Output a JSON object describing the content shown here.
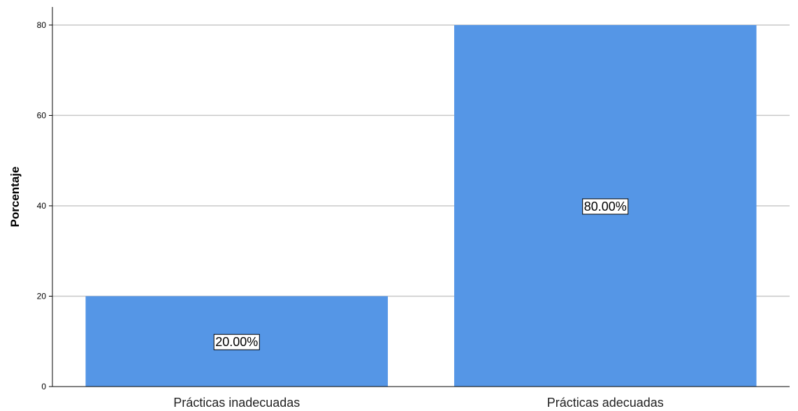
{
  "chart_data": {
    "type": "bar",
    "categories": [
      "Prácticas inadecuadas",
      "Prácticas adecuadas"
    ],
    "values": [
      20,
      80
    ],
    "data_labels": [
      "20.00%",
      "80.00%"
    ],
    "title": "",
    "xlabel": "",
    "ylabel": "Porcentaje",
    "ylim": [
      0,
      84
    ],
    "yticks": [
      0,
      20,
      40,
      60,
      80
    ],
    "grid": true,
    "bar_color": "#5596e6",
    "gridline_color": "#c8c8c8"
  }
}
